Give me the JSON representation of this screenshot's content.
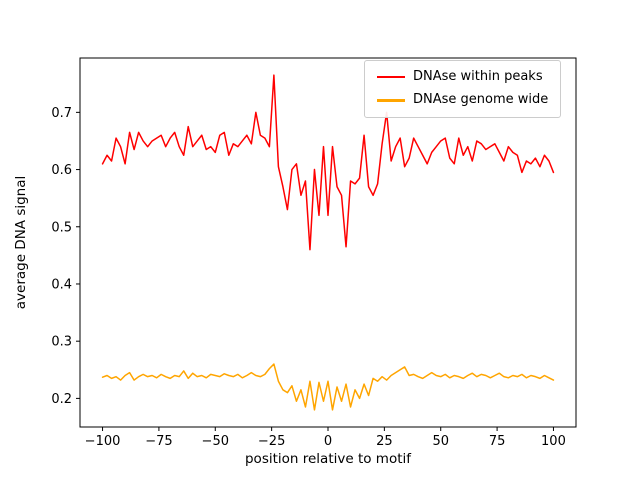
{
  "figure": {
    "background": "#ffffff"
  },
  "chart_data": {
    "type": "line",
    "title": "",
    "xlabel": "position relative to motif",
    "ylabel": "average DNA signal",
    "xlim": [
      -110,
      110
    ],
    "ylim": [
      0.15,
      0.795
    ],
    "grid": false,
    "legend": {
      "position": "upper right"
    },
    "xtick_values": [
      -100,
      -75,
      -50,
      -25,
      0,
      25,
      50,
      75,
      100
    ],
    "xtick_labels": [
      "−100",
      "−75",
      "−50",
      "−25",
      "0",
      "25",
      "50",
      "75",
      "100"
    ],
    "ytick_values": [
      0.2,
      0.3,
      0.4,
      0.5,
      0.6,
      0.7
    ],
    "ytick_labels": [
      "0.2",
      "0.3",
      "0.4",
      "0.5",
      "0.6",
      "0.7"
    ],
    "x": [
      -100,
      -98,
      -96,
      -94,
      -92,
      -90,
      -88,
      -86,
      -84,
      -82,
      -80,
      -78,
      -76,
      -74,
      -72,
      -70,
      -68,
      -66,
      -64,
      -62,
      -60,
      -58,
      -56,
      -54,
      -52,
      -50,
      -48,
      -46,
      -44,
      -42,
      -40,
      -38,
      -36,
      -34,
      -32,
      -30,
      -28,
      -26,
      -24,
      -22,
      -20,
      -18,
      -16,
      -14,
      -12,
      -10,
      -8,
      -6,
      -4,
      -2,
      0,
      2,
      4,
      6,
      8,
      10,
      12,
      14,
      16,
      18,
      20,
      22,
      24,
      26,
      28,
      30,
      32,
      34,
      36,
      38,
      40,
      42,
      44,
      46,
      48,
      50,
      52,
      54,
      56,
      58,
      60,
      62,
      64,
      66,
      68,
      70,
      72,
      74,
      76,
      78,
      80,
      82,
      84,
      86,
      88,
      90,
      92,
      94,
      96,
      98,
      100
    ],
    "series": [
      {
        "name": "DNAse within peaks",
        "color": "#ff0000",
        "values": [
          0.61,
          0.625,
          0.615,
          0.655,
          0.64,
          0.61,
          0.665,
          0.635,
          0.665,
          0.65,
          0.64,
          0.65,
          0.655,
          0.66,
          0.64,
          0.655,
          0.665,
          0.64,
          0.625,
          0.675,
          0.64,
          0.65,
          0.66,
          0.635,
          0.64,
          0.63,
          0.66,
          0.665,
          0.625,
          0.645,
          0.64,
          0.65,
          0.66,
          0.645,
          0.7,
          0.66,
          0.655,
          0.64,
          0.765,
          0.605,
          0.57,
          0.53,
          0.6,
          0.61,
          0.555,
          0.58,
          0.46,
          0.6,
          0.52,
          0.64,
          0.52,
          0.64,
          0.57,
          0.555,
          0.465,
          0.58,
          0.575,
          0.585,
          0.66,
          0.57,
          0.555,
          0.575,
          0.645,
          0.7,
          0.615,
          0.64,
          0.655,
          0.605,
          0.62,
          0.655,
          0.64,
          0.625,
          0.61,
          0.63,
          0.64,
          0.65,
          0.655,
          0.62,
          0.61,
          0.655,
          0.625,
          0.64,
          0.615,
          0.65,
          0.645,
          0.635,
          0.64,
          0.645,
          0.63,
          0.615,
          0.64,
          0.63,
          0.625,
          0.595,
          0.615,
          0.61,
          0.62,
          0.605,
          0.625,
          0.615,
          0.595
        ]
      },
      {
        "name": "DNAse genome wide",
        "color": "#ffa500",
        "values": [
          0.237,
          0.24,
          0.235,
          0.238,
          0.232,
          0.24,
          0.245,
          0.232,
          0.238,
          0.242,
          0.238,
          0.24,
          0.236,
          0.242,
          0.238,
          0.235,
          0.24,
          0.238,
          0.248,
          0.235,
          0.244,
          0.238,
          0.24,
          0.236,
          0.242,
          0.24,
          0.238,
          0.243,
          0.24,
          0.238,
          0.242,
          0.236,
          0.24,
          0.245,
          0.24,
          0.238,
          0.242,
          0.252,
          0.26,
          0.23,
          0.215,
          0.21,
          0.222,
          0.195,
          0.215,
          0.185,
          0.23,
          0.18,
          0.228,
          0.195,
          0.23,
          0.18,
          0.22,
          0.195,
          0.225,
          0.185,
          0.215,
          0.2,
          0.225,
          0.205,
          0.235,
          0.23,
          0.238,
          0.232,
          0.24,
          0.245,
          0.25,
          0.255,
          0.24,
          0.242,
          0.238,
          0.235,
          0.24,
          0.245,
          0.24,
          0.238,
          0.242,
          0.236,
          0.24,
          0.238,
          0.235,
          0.24,
          0.244,
          0.238,
          0.242,
          0.24,
          0.236,
          0.24,
          0.244,
          0.238,
          0.236,
          0.24,
          0.238,
          0.242,
          0.236,
          0.24,
          0.238,
          0.235,
          0.24,
          0.236,
          0.232
        ]
      }
    ]
  }
}
